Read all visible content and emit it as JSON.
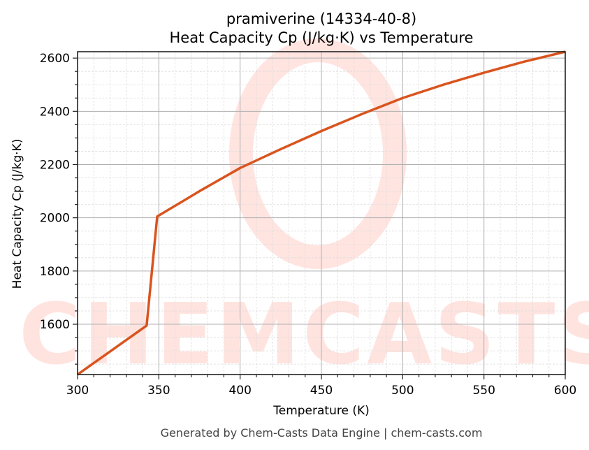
{
  "chart_data": {
    "type": "line",
    "title": "pramiverine (14334-40-8)",
    "subtitle": "Heat Capacity Cp (J/kg·K) vs Temperature",
    "xlabel": "Temperature (K)",
    "ylabel": "Heat Capacity Cp (J/kg·K)",
    "xlim": [
      300,
      600
    ],
    "ylim": [
      1411,
      2624
    ],
    "xticks": [
      300,
      350,
      400,
      450,
      500,
      550,
      600
    ],
    "yticks": [
      1600,
      1800,
      2000,
      2200,
      2400,
      2600
    ],
    "grid": true,
    "legend": null,
    "series": [
      {
        "name": "Cp",
        "color": "#d9541e",
        "x": [
          300,
          342.5,
          349,
          360,
          375,
          400,
          425,
          450,
          475,
          500,
          525,
          550,
          575,
          600
        ],
        "y": [
          1411,
          1595,
          2005,
          2045,
          2100,
          2187,
          2258,
          2326,
          2390,
          2450,
          2500,
          2545,
          2587,
          2624
        ]
      }
    ],
    "watermark": "CHEMCASTS"
  },
  "footer": "Generated by Chem-Casts Data Engine | chem-casts.com"
}
